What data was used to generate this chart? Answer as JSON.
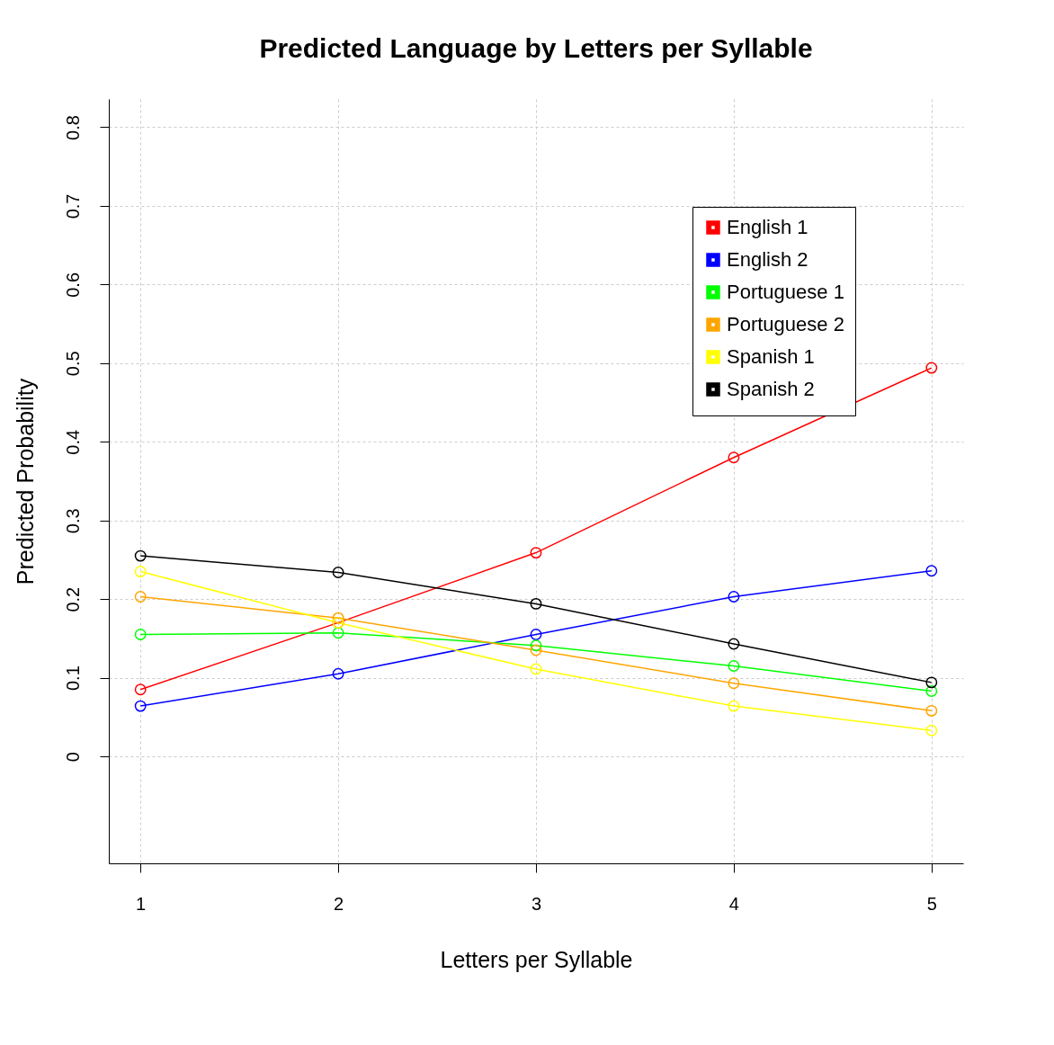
{
  "chart_data": {
    "type": "line",
    "title": "Predicted Language by Letters per Syllable",
    "xlabel": "Letters per Syllable",
    "ylabel": "Predicted Probability",
    "x": [
      1,
      2,
      3,
      4,
      5
    ],
    "series": [
      {
        "name": "English 1",
        "color": "#ff0000",
        "values": [
          0.085,
          0.17,
          0.259,
          0.38,
          0.494
        ]
      },
      {
        "name": "English 2",
        "color": "#0000ff",
        "values": [
          0.064,
          0.105,
          0.155,
          0.203,
          0.236
        ]
      },
      {
        "name": "Portuguese 1",
        "color": "#00ff00",
        "values": [
          0.155,
          0.157,
          0.141,
          0.115,
          0.083
        ]
      },
      {
        "name": "Portuguese 2",
        "color": "#ffa500",
        "values": [
          0.203,
          0.176,
          0.135,
          0.093,
          0.058
        ]
      },
      {
        "name": "Spanish 1",
        "color": "#ffff00",
        "values": [
          0.235,
          0.17,
          0.111,
          0.064,
          0.033
        ]
      },
      {
        "name": "Spanish 2",
        "color": "#000000",
        "values": [
          0.255,
          0.234,
          0.194,
          0.143,
          0.094
        ]
      }
    ],
    "xlim": [
      0.84,
      5.16
    ],
    "ylim": [
      -0.136,
      0.836
    ],
    "xticks": [
      1,
      2,
      3,
      4,
      5
    ],
    "yticks": [
      0,
      0.1,
      0.2,
      0.3,
      0.4,
      0.5,
      0.6,
      0.7,
      0.8
    ],
    "grid": true,
    "legend": "top right",
    "marker": "circle",
    "line_style": "solid"
  }
}
